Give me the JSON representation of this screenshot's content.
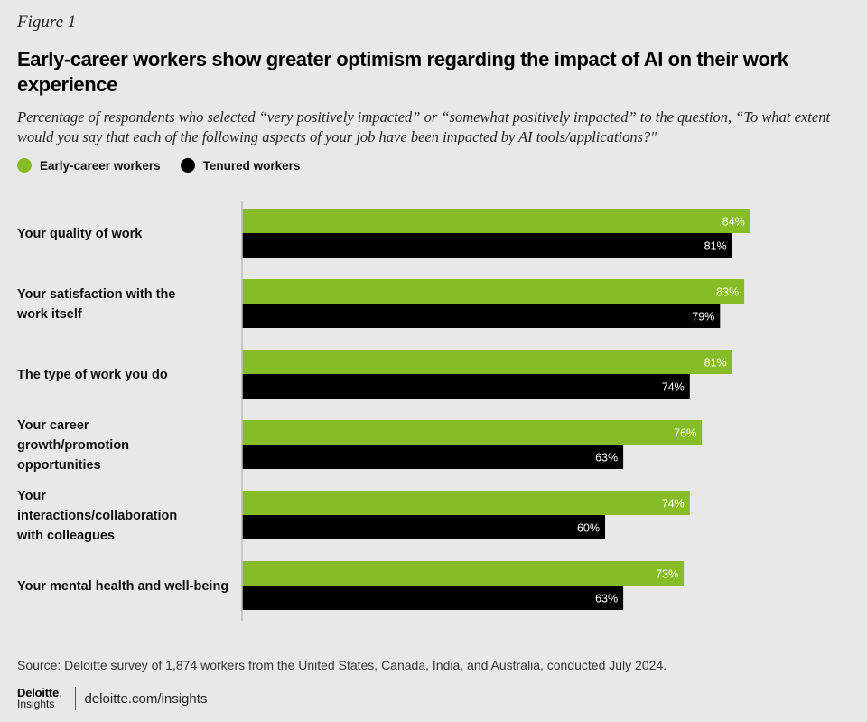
{
  "figure_label": "Figure 1",
  "colors": {
    "early_career": "#86bc25",
    "tenured": "#000000",
    "axis": "#bdbdbd",
    "background": "#e8e8e8"
  },
  "chart_data": {
    "type": "bar",
    "orientation": "horizontal",
    "title": "Early-career workers show greater optimism regarding the impact of AI on their work experience",
    "subtitle": "Percentage of respondents who selected “very positively impacted” or “somewhat positively impacted” to the question, “To what extent would you say that each of the following aspects of your job have been impacted by AI tools/applications?\"",
    "legend_placement": "top-left",
    "grid": false,
    "xlim": [
      0,
      100
    ],
    "unit": "%",
    "categories": [
      "Your quality of work",
      "Your satisfaction with the work itself",
      "The type of work you do",
      "Your career growth/promotion opportunities",
      "Your interactions/collaboration with colleagues",
      "Your mental health and well-being"
    ],
    "series": [
      {
        "name": "Early-career workers",
        "values": [
          84,
          83,
          81,
          76,
          74,
          73
        ]
      },
      {
        "name": "Tenured workers",
        "values": [
          81,
          79,
          74,
          63,
          60,
          63
        ]
      }
    ]
  },
  "source": "Source: Deloitte survey of 1,874 workers from the United States, Canada, India, and Australia, conducted July 2024.",
  "footer": {
    "brand_main": "Deloitte",
    "brand_dot": ".",
    "brand_sub": "Insights",
    "url": "deloitte.com/insights"
  }
}
